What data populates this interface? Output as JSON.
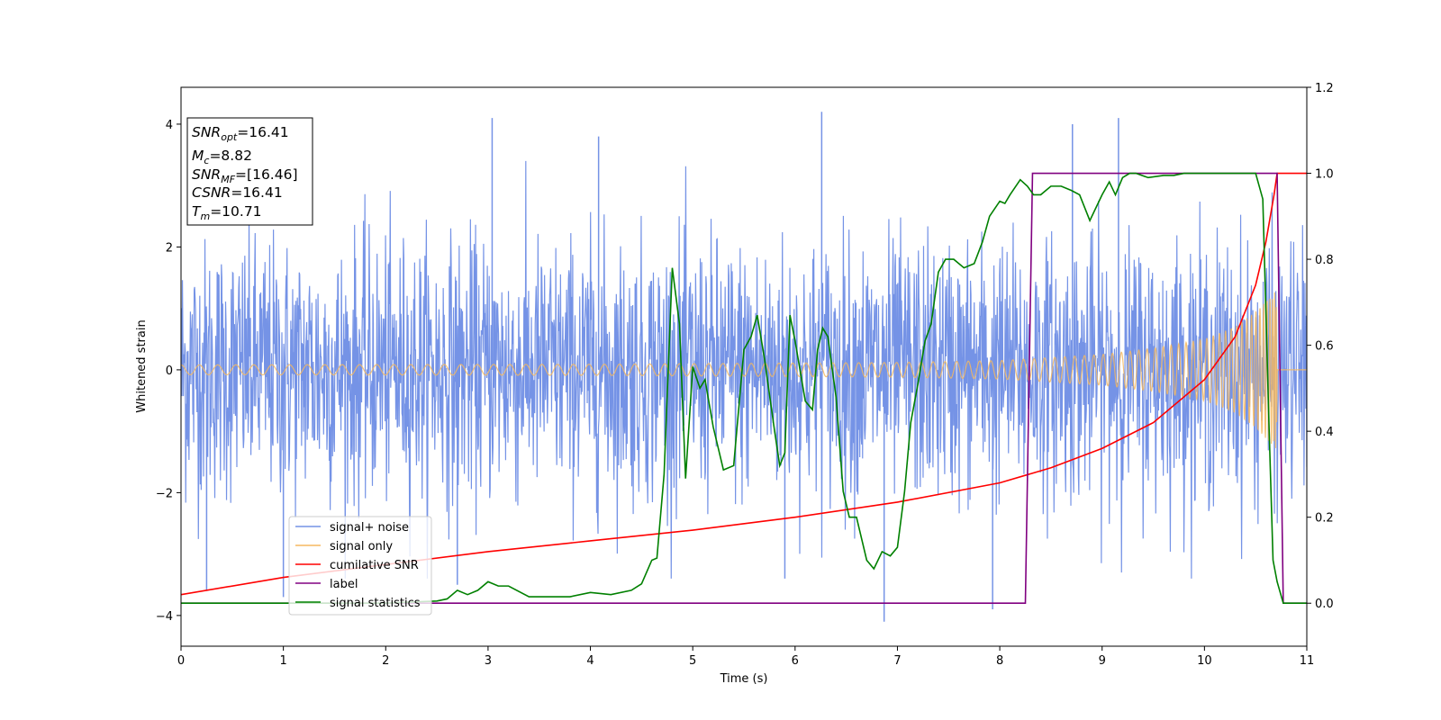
{
  "chart_data": {
    "type": "line",
    "title": "",
    "xlabel": "Time (s)",
    "ylabel": "Whitened strain",
    "xlim": [
      0,
      11
    ],
    "ylim": [
      -4.5,
      4.6
    ],
    "y2lim": [
      -0.1,
      1.2
    ],
    "x_ticks": [
      "0",
      "1",
      "2",
      "3",
      "4",
      "5",
      "6",
      "7",
      "8",
      "9",
      "10",
      "11"
    ],
    "y_ticks": [
      "−4",
      "−2",
      "0",
      "2",
      "4"
    ],
    "y2_ticks": [
      "0.0",
      "0.2",
      "0.4",
      "0.6",
      "0.8",
      "1.0",
      "1.2"
    ],
    "colors": {
      "noise": "#7593e6",
      "signal": "#f5b860",
      "snr": "#ff0000",
      "label": "#800080",
      "stat": "#008000"
    },
    "annotation": [
      {
        "sym": "SNR",
        "sub": "opt",
        "val": "=16.41"
      },
      {
        "sym": "M",
        "sub": "c",
        "val": "=8.82"
      },
      {
        "sym": "SNR",
        "sub": "MF",
        "val": "=[16.46]"
      },
      {
        "sym": "CSNR",
        "sub": "",
        "val": "=16.41"
      },
      {
        "sym": "T",
        "sub": "m",
        "val": "=10.71"
      }
    ],
    "legend": [
      "signal+ noise",
      "signal only",
      "cumilative SNR",
      "label",
      "signal statistics"
    ],
    "series": [
      {
        "name": "signal+ noise",
        "axis": "left",
        "description": "white noise, typical amplitude about ±2.2, peaks to about ±4.1, t from 0 to 11",
        "noise_sigma": 1.05,
        "peaks": [
          [
            3.04,
            4.1
          ],
          [
            4.08,
            3.8
          ],
          [
            6.26,
            4.2
          ],
          [
            9.16,
            4.1
          ],
          [
            6.87,
            -4.1
          ],
          [
            1.0,
            -3.7
          ],
          [
            7.93,
            -3.9
          ],
          [
            2.7,
            -3.5
          ],
          [
            5.9,
            -3.4
          ],
          [
            8.71,
            4.0
          ],
          [
            0.25,
            -3.6
          ]
        ]
      },
      {
        "name": "signal only",
        "axis": "left",
        "description": "chirp, amplitude grows toward merger at t≈10.71 then zero",
        "amplitude_points": [
          [
            0,
            0.08
          ],
          [
            4,
            0.09
          ],
          [
            7,
            0.12
          ],
          [
            8,
            0.15
          ],
          [
            9,
            0.25
          ],
          [
            9.5,
            0.35
          ],
          [
            10,
            0.5
          ],
          [
            10.3,
            0.7
          ],
          [
            10.5,
            0.95
          ],
          [
            10.65,
            1.2
          ],
          [
            10.71,
            1.3
          ]
        ],
        "merger_time": 10.71
      },
      {
        "name": "cumilative SNR",
        "axis": "right",
        "x": [
          0,
          1,
          2,
          3,
          4,
          5,
          6,
          7,
          8,
          8.5,
          9,
          9.5,
          10,
          10.3,
          10.5,
          10.6,
          10.68,
          10.71,
          11
        ],
        "y": [
          0.02,
          0.06,
          0.09,
          0.12,
          0.145,
          0.17,
          0.2,
          0.235,
          0.28,
          0.315,
          0.36,
          0.42,
          0.52,
          0.62,
          0.74,
          0.84,
          0.95,
          1.0,
          1.0
        ]
      },
      {
        "name": "label",
        "axis": "right",
        "x": [
          0,
          8.25,
          8.32,
          10.71,
          10.77,
          11
        ],
        "y": [
          0,
          0,
          1,
          1,
          0,
          0
        ]
      },
      {
        "name": "signal statistics",
        "axis": "right",
        "x": [
          0,
          1,
          2,
          2.5,
          2.6,
          2.7,
          2.8,
          2.9,
          3.0,
          3.1,
          3.2,
          3.4,
          3.6,
          3.8,
          4.0,
          4.2,
          4.4,
          4.5,
          4.6,
          4.65,
          4.72,
          4.8,
          4.87,
          4.93,
          5.0,
          5.07,
          5.12,
          5.2,
          5.3,
          5.4,
          5.5,
          5.57,
          5.63,
          5.7,
          5.8,
          5.85,
          5.9,
          5.95,
          6.0,
          6.1,
          6.17,
          6.22,
          6.27,
          6.32,
          6.4,
          6.47,
          6.53,
          6.6,
          6.7,
          6.77,
          6.85,
          6.93,
          7.0,
          7.07,
          7.13,
          7.2,
          7.27,
          7.33,
          7.4,
          7.47,
          7.55,
          7.65,
          7.75,
          7.83,
          7.9,
          8.0,
          8.05,
          8.1,
          8.2,
          8.27,
          8.33,
          8.4,
          8.5,
          8.6,
          8.7,
          8.78,
          8.88,
          9.0,
          9.07,
          9.13,
          9.2,
          9.27,
          9.33,
          9.45,
          9.6,
          9.7,
          9.8,
          9.9,
          10.0,
          10.1,
          10.2,
          10.3,
          10.4,
          10.5,
          10.57,
          10.63,
          10.67,
          10.71,
          10.77,
          11
        ],
        "y": [
          0.0,
          0.0,
          0.0,
          0.005,
          0.01,
          0.03,
          0.02,
          0.03,
          0.05,
          0.04,
          0.04,
          0.015,
          0.015,
          0.015,
          0.025,
          0.02,
          0.03,
          0.045,
          0.1,
          0.105,
          0.3,
          0.78,
          0.65,
          0.29,
          0.55,
          0.5,
          0.52,
          0.41,
          0.31,
          0.32,
          0.59,
          0.62,
          0.67,
          0.57,
          0.4,
          0.32,
          0.35,
          0.67,
          0.61,
          0.47,
          0.45,
          0.59,
          0.64,
          0.62,
          0.48,
          0.26,
          0.2,
          0.2,
          0.1,
          0.08,
          0.12,
          0.11,
          0.13,
          0.26,
          0.42,
          0.51,
          0.61,
          0.65,
          0.77,
          0.8,
          0.8,
          0.78,
          0.79,
          0.84,
          0.9,
          0.935,
          0.93,
          0.95,
          0.985,
          0.97,
          0.95,
          0.95,
          0.97,
          0.97,
          0.96,
          0.95,
          0.89,
          0.95,
          0.98,
          0.95,
          0.99,
          1.0,
          1.0,
          0.99,
          0.995,
          0.995,
          1.0,
          1.0,
          1.0,
          1.0,
          1.0,
          1.0,
          1.0,
          1.0,
          0.94,
          0.42,
          0.1,
          0.05,
          0.0,
          0.0
        ]
      }
    ]
  }
}
